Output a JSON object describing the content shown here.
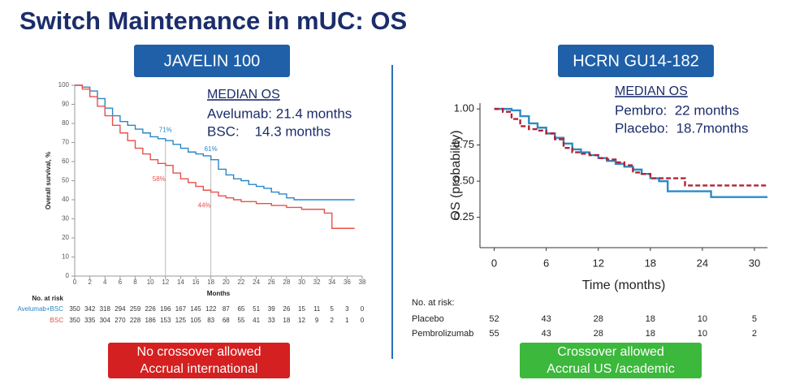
{
  "title": "Switch Maintenance in mUC: OS",
  "chart_data": [
    {
      "type": "line",
      "label": "JAVELIN 100",
      "median_title": "MEDIAN OS",
      "median_lines": [
        "Avelumab: 21.4 months",
        "BSC:    14.3 months"
      ],
      "y_label": "Overall survival, %",
      "x_label": "Months",
      "xlim": [
        0,
        38
      ],
      "xticks": [
        0,
        2,
        4,
        6,
        8,
        10,
        12,
        14,
        16,
        18,
        20,
        22,
        24,
        26,
        28,
        30,
        32,
        34,
        36,
        38
      ],
      "ylim": [
        0,
        100
      ],
      "yticks": [
        0,
        10,
        20,
        30,
        40,
        50,
        60,
        70,
        80,
        90,
        100
      ],
      "series": [
        {
          "name": "Avelumab+BSC",
          "color": "#2a86c8",
          "line_style": "solid",
          "x": [
            0,
            1,
            2,
            3,
            4,
            5,
            6,
            7,
            8,
            9,
            10,
            11,
            12,
            13,
            14,
            15,
            16,
            17,
            18,
            19,
            20,
            21,
            22,
            23,
            24,
            25,
            26,
            27,
            28,
            29,
            30,
            37
          ],
          "values": [
            100,
            99,
            97,
            93,
            88,
            84,
            81,
            79,
            77,
            75,
            73,
            72,
            71,
            69,
            67,
            65,
            64,
            63,
            61,
            56,
            53,
            51,
            50,
            48,
            47,
            46,
            44,
            43,
            41,
            40,
            40,
            40
          ]
        },
        {
          "name": "BSC",
          "color": "#e8514a",
          "line_style": "solid",
          "x": [
            0,
            1,
            2,
            3,
            4,
            5,
            6,
            7,
            8,
            9,
            10,
            11,
            12,
            13,
            14,
            15,
            16,
            17,
            18,
            19,
            20,
            21,
            22,
            24,
            26,
            28,
            30,
            33,
            34,
            37
          ],
          "values": [
            100,
            98,
            94,
            89,
            84,
            79,
            75,
            71,
            67,
            64,
            61,
            59,
            58,
            54,
            51,
            49,
            47,
            45,
            44,
            42,
            41,
            40,
            39,
            38,
            37,
            36,
            35,
            33,
            25,
            25
          ]
        }
      ],
      "annotations": [
        {
          "series": 0,
          "x": 12,
          "value": 71,
          "label": "71%"
        },
        {
          "series": 0,
          "x": 18,
          "value": 61,
          "label": "61%"
        },
        {
          "series": 1,
          "x": 12,
          "value": 58,
          "label": "58%"
        },
        {
          "series": 1,
          "x": 18,
          "value": 44,
          "label": "44%"
        }
      ],
      "reference_x": [
        12,
        18
      ],
      "at_risk_title": "No. at risk",
      "at_risk": [
        {
          "name": "Avelumab+BSC",
          "values": [
            350,
            342,
            318,
            294,
            259,
            226,
            196,
            167,
            145,
            122,
            87,
            65,
            51,
            39,
            26,
            15,
            11,
            5,
            3,
            0
          ]
        },
        {
          "name": "BSC",
          "values": [
            350,
            335,
            304,
            270,
            228,
            186,
            153,
            125,
            105,
            83,
            68,
            55,
            41,
            33,
            18,
            12,
            9,
            2,
            1,
            0
          ]
        }
      ],
      "footer": [
        "No crossover allowed",
        "Accrual international"
      ]
    },
    {
      "type": "line",
      "label": "HCRN GU14-182",
      "median_title": "MEDIAN OS",
      "median_lines": [
        "Pembro:  22 months",
        "Placebo:  18.7months"
      ],
      "y_label": "OS (probability)",
      "x_label": "Time (months)",
      "xlim": [
        -0.8,
        31.5
      ],
      "xticks": [
        0,
        6,
        12,
        18,
        24,
        30
      ],
      "ylim": [
        0.04,
        1.04
      ],
      "yticks": [
        0.25,
        {
          "value": 0.5,
          "label": "0.50"
        },
        0.75,
        {
          "value": 1,
          "label": "1.00"
        }
      ],
      "series": [
        {
          "name": "Pembrolizumab",
          "color": "#2a8cc4",
          "line_style": "solid",
          "x": [
            0,
            2,
            3,
            4,
            5,
            6,
            7,
            8,
            9,
            10,
            11,
            12,
            13,
            14,
            15,
            16,
            17,
            18,
            19,
            20,
            24,
            25,
            31.5
          ],
          "values": [
            1,
            0.99,
            0.95,
            0.9,
            0.87,
            0.83,
            0.8,
            0.76,
            0.72,
            0.7,
            0.68,
            0.66,
            0.64,
            0.62,
            0.6,
            0.58,
            0.55,
            0.52,
            0.5,
            0.43,
            0.43,
            0.39,
            0.39
          ]
        },
        {
          "name": "Placebo",
          "color": "#b22234",
          "line_style": "dashed",
          "x": [
            0,
            1,
            2,
            3,
            4,
            5,
            6,
            7,
            8,
            9,
            10,
            11,
            12,
            13,
            14,
            15,
            16,
            17,
            18,
            21,
            22,
            31.5
          ],
          "values": [
            1,
            0.98,
            0.93,
            0.88,
            0.86,
            0.85,
            0.83,
            0.79,
            0.73,
            0.7,
            0.69,
            0.68,
            0.66,
            0.65,
            0.63,
            0.61,
            0.56,
            0.55,
            0.52,
            0.52,
            0.47,
            0.47
          ]
        }
      ],
      "at_risk_title": "No. at risk:",
      "at_risk_x": [
        0,
        6,
        12,
        18,
        24,
        30
      ],
      "at_risk": [
        {
          "name": "Placebo",
          "values": [
            52,
            43,
            28,
            18,
            10,
            5
          ]
        },
        {
          "name": "Pembrolizumab",
          "values": [
            55,
            43,
            28,
            18,
            10,
            2
          ]
        }
      ],
      "footer": [
        "Crossover allowed",
        "Accrual US /academic"
      ]
    }
  ]
}
